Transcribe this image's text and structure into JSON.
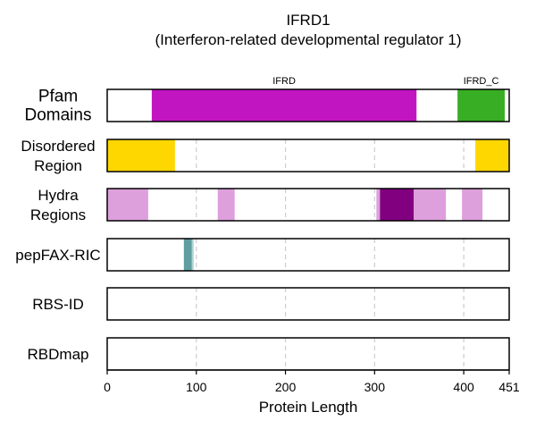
{
  "title": "IFRD1",
  "subtitle": "(Interferon-related developmental regulator 1)",
  "chart_data": {
    "type": "protein-domain-tracks",
    "protein_length": 451,
    "xlabel": "Protein Length",
    "xlim": [
      0,
      451
    ],
    "xticks": [
      0,
      100,
      200,
      300,
      400,
      451
    ],
    "grid": "vertical dashed at 100, 200, 300, 400",
    "tracks": [
      {
        "id": "pfam",
        "label_lines": [
          "Pfam",
          "Domains"
        ],
        "segments": [
          {
            "start": 50,
            "end": 347,
            "color": "#C215C2",
            "label": "IFRD"
          },
          {
            "start": 393,
            "end": 446,
            "color": "#38AE24",
            "label": "IFRD_C"
          }
        ]
      },
      {
        "id": "disordered",
        "label_lines": [
          "Disordered",
          "Region"
        ],
        "segments": [
          {
            "start": 0,
            "end": 76,
            "color": "#FFD700"
          },
          {
            "start": 413,
            "end": 451,
            "color": "#FFD700"
          }
        ]
      },
      {
        "id": "hydra",
        "label_lines": [
          "Hydra",
          "Regions"
        ],
        "segments": [
          {
            "start": 0,
            "end": 46,
            "color": "#DDA0DD"
          },
          {
            "start": 124,
            "end": 143,
            "color": "#DDA0DD"
          },
          {
            "start": 302,
            "end": 306,
            "color": "#DDA0DD"
          },
          {
            "start": 306,
            "end": 344,
            "color": "#800080"
          },
          {
            "start": 344,
            "end": 380,
            "color": "#DDA0DD"
          },
          {
            "start": 398,
            "end": 421,
            "color": "#DDA0DD"
          }
        ]
      },
      {
        "id": "pepfax",
        "label_lines": [
          "pepFAX-RIC"
        ],
        "segments": [
          {
            "start": 86,
            "end": 95,
            "color": "#5F9EA0"
          },
          {
            "start": 95,
            "end": 97,
            "color": "#B0D4D6"
          }
        ]
      },
      {
        "id": "rbsid",
        "label_lines": [
          "RBS-ID"
        ],
        "segments": []
      },
      {
        "id": "rbdmap",
        "label_lines": [
          "RBDmap"
        ],
        "segments": []
      }
    ]
  }
}
